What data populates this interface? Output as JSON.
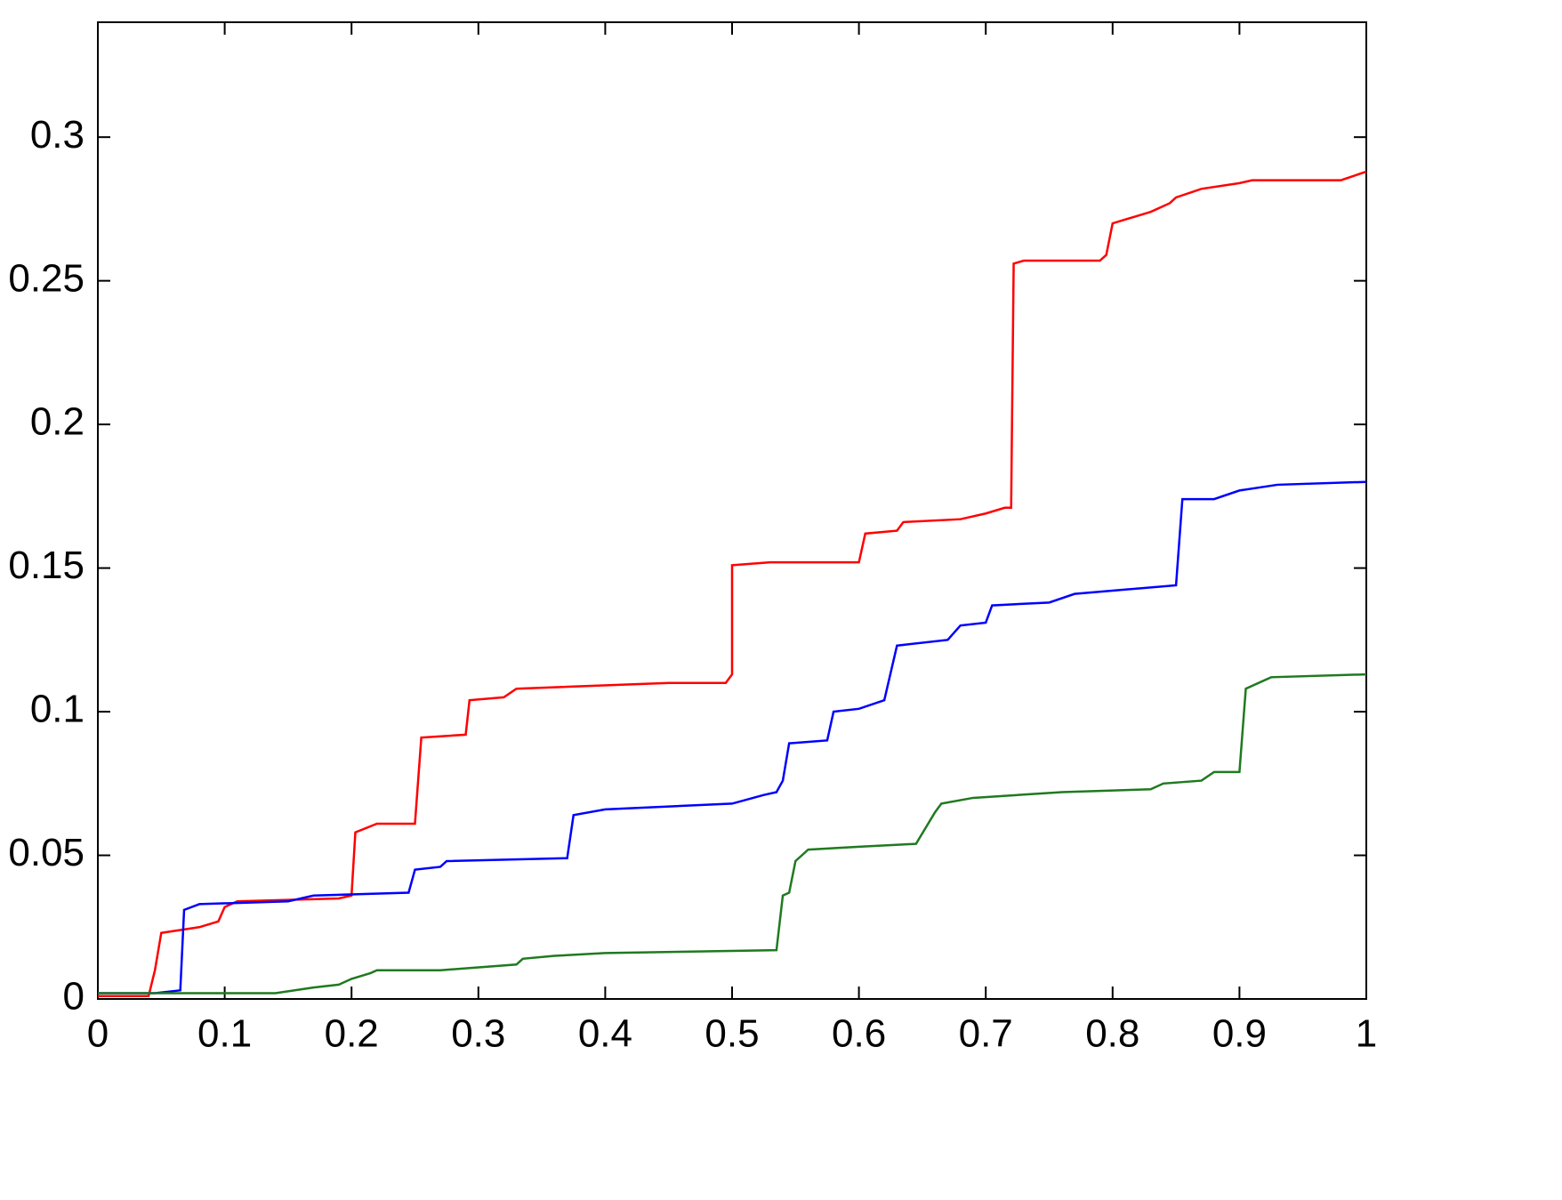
{
  "chart_data": {
    "type": "line",
    "xlim": [
      0,
      1
    ],
    "xticks": [
      0,
      0.1,
      0.2,
      0.3,
      0.4,
      0.5,
      0.6,
      0.7,
      0.8,
      0.9,
      1
    ],
    "ylim": [
      0,
      0.34
    ],
    "yticks": [
      0,
      0.05,
      0.1,
      0.15,
      0.2,
      0.25,
      0.3
    ],
    "grid": false,
    "series": [
      {
        "color": "#ff0000",
        "x": [
          0,
          0.04,
          0.045,
          0.05,
          0.065,
          0.08,
          0.095,
          0.1,
          0.11,
          0.19,
          0.2,
          0.203,
          0.22,
          0.25,
          0.255,
          0.29,
          0.293,
          0.32,
          0.33,
          0.45,
          0.495,
          0.5,
          0.5,
          0.53,
          0.6,
          0.605,
          0.63,
          0.635,
          0.68,
          0.7,
          0.715,
          0.72,
          0.722,
          0.73,
          0.79,
          0.795,
          0.8,
          0.83,
          0.845,
          0.85,
          0.87,
          0.9,
          0.91,
          0.98,
          1
        ],
        "values": [
          0.001,
          0.001,
          0.01,
          0.023,
          0.024,
          0.025,
          0.027,
          0.032,
          0.034,
          0.035,
          0.036,
          0.058,
          0.061,
          0.061,
          0.091,
          0.092,
          0.104,
          0.105,
          0.108,
          0.11,
          0.11,
          0.113,
          0.151,
          0.152,
          0.152,
          0.162,
          0.163,
          0.166,
          0.167,
          0.169,
          0.171,
          0.171,
          0.256,
          0.257,
          0.257,
          0.259,
          0.27,
          0.274,
          0.277,
          0.279,
          0.282,
          0.284,
          0.285,
          0.285,
          0.288
        ]
      },
      {
        "color": "#0000ff",
        "x": [
          0,
          0.045,
          0.065,
          0.068,
          0.08,
          0.15,
          0.17,
          0.245,
          0.25,
          0.27,
          0.275,
          0.37,
          0.375,
          0.4,
          0.5,
          0.525,
          0.535,
          0.54,
          0.545,
          0.575,
          0.58,
          0.6,
          0.62,
          0.63,
          0.67,
          0.68,
          0.7,
          0.705,
          0.75,
          0.77,
          0.85,
          0.855,
          0.88,
          0.9,
          0.93,
          1
        ],
        "values": [
          0.002,
          0.002,
          0.003,
          0.031,
          0.033,
          0.034,
          0.036,
          0.037,
          0.045,
          0.046,
          0.048,
          0.049,
          0.064,
          0.066,
          0.068,
          0.071,
          0.072,
          0.076,
          0.089,
          0.09,
          0.1,
          0.101,
          0.104,
          0.123,
          0.125,
          0.13,
          0.131,
          0.137,
          0.138,
          0.141,
          0.144,
          0.174,
          0.174,
          0.177,
          0.179,
          0.18
        ]
      },
      {
        "color": "#1f7a1f",
        "x": [
          0,
          0.14,
          0.17,
          0.19,
          0.2,
          0.215,
          0.22,
          0.27,
          0.3,
          0.33,
          0.335,
          0.36,
          0.4,
          0.535,
          0.54,
          0.545,
          0.55,
          0.56,
          0.6,
          0.645,
          0.66,
          0.665,
          0.69,
          0.76,
          0.83,
          0.84,
          0.87,
          0.88,
          0.9,
          0.905,
          0.925,
          1
        ],
        "values": [
          0.002,
          0.002,
          0.004,
          0.005,
          0.007,
          0.009,
          0.01,
          0.01,
          0.011,
          0.012,
          0.014,
          0.015,
          0.016,
          0.017,
          0.036,
          0.037,
          0.048,
          0.052,
          0.053,
          0.054,
          0.065,
          0.068,
          0.07,
          0.072,
          0.073,
          0.075,
          0.076,
          0.079,
          0.079,
          0.108,
          0.112,
          0.113
        ]
      }
    ]
  }
}
